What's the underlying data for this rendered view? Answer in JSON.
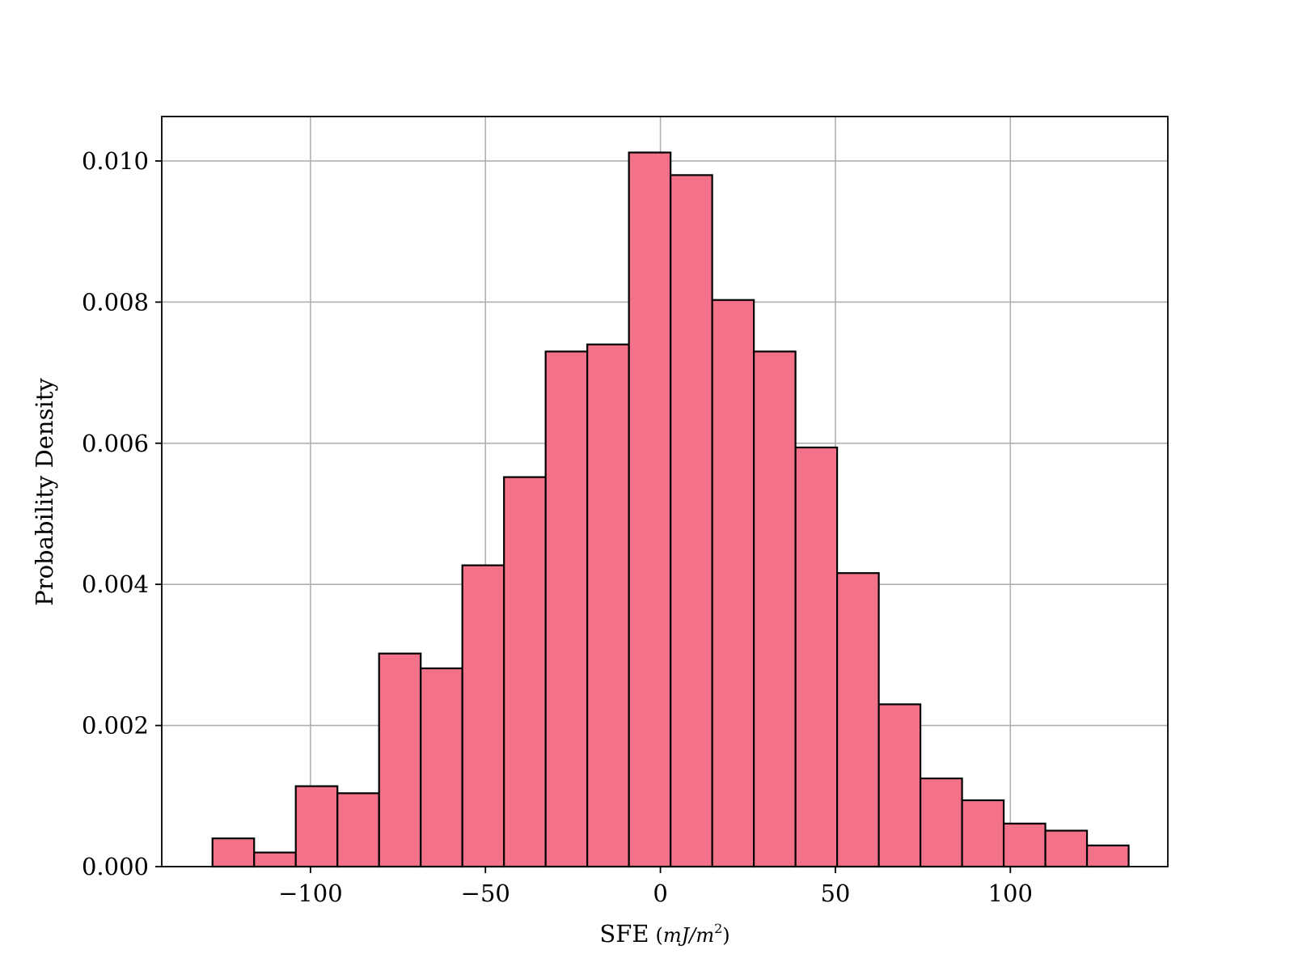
{
  "chart_data": {
    "type": "bar",
    "subtype": "histogram",
    "bin_edges": [
      -128,
      -116.1,
      -104.2,
      -92.3,
      -80.4,
      -68.5,
      -56.6,
      -44.7,
      -32.8,
      -20.9,
      -9.0,
      2.9,
      14.8,
      26.7,
      38.6,
      50.5,
      62.4,
      74.3,
      86.2,
      98.1,
      110.0,
      121.9,
      133.8
    ],
    "values": [
      0.0004,
      0.0002,
      0.00114,
      0.00104,
      0.00302,
      0.00281,
      0.00427,
      0.00552,
      0.0073,
      0.0074,
      0.01012,
      0.0098,
      0.00803,
      0.0073,
      0.00594,
      0.00416,
      0.0023,
      0.00125,
      0.00094,
      0.00061,
      0.00051,
      0.0003
    ],
    "bar_color": "#f47289",
    "edge_color": "#000000",
    "xlim": [
      -142.5,
      145
    ],
    "ylim": [
      0,
      0.01063
    ],
    "xticks": [
      -100,
      -50,
      0,
      50,
      100
    ],
    "xtick_labels": [
      "−100",
      "−50",
      "0",
      "50",
      "100"
    ],
    "yticks": [
      0,
      0.002,
      0.004,
      0.006,
      0.008,
      0.01
    ],
    "ytick_labels": [
      "0.000",
      "0.002",
      "0.004",
      "0.006",
      "0.008",
      "0.010"
    ],
    "xlabel": "SFE",
    "xlabel_unit": "(mJ/m2)",
    "xlabel_unit_parts": {
      "open": "(",
      "m": "mJ/m",
      "sup": "2",
      "close": ")"
    },
    "ylabel": "Probability Density",
    "grid": true
  }
}
